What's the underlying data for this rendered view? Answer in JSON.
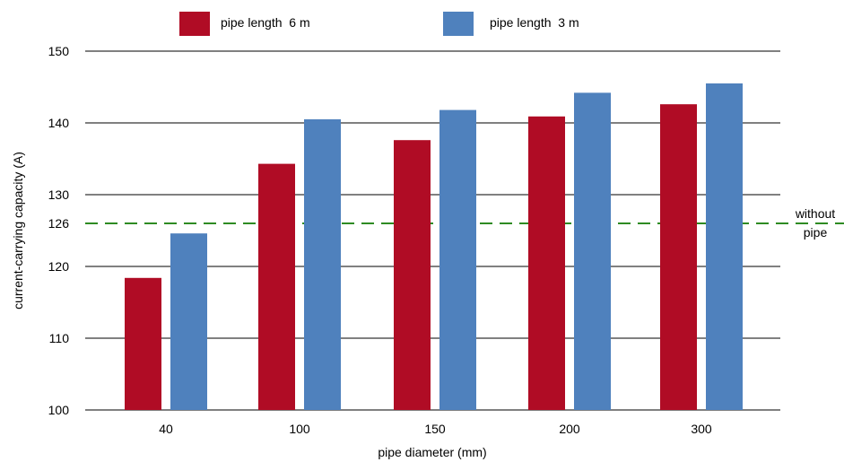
{
  "chart_data": {
    "type": "bar",
    "title": "",
    "xlabel": "pipe diameter (mm)",
    "ylabel": "current-carrying capacity (A)",
    "categories": [
      "40",
      "100",
      "150",
      "200",
      "300"
    ],
    "series": [
      {
        "name": "pipe length  6 m",
        "color": "#b00c25",
        "values": [
          118.4,
          134.3,
          137.6,
          140.9,
          142.6
        ]
      },
      {
        "name": "pipe length  3 m",
        "color": "#4f81bd",
        "values": [
          124.6,
          140.5,
          141.8,
          144.2,
          145.5
        ]
      }
    ],
    "ylim": [
      100,
      150
    ],
    "yticks": [
      100,
      110,
      120,
      130,
      140,
      150
    ],
    "grid": true,
    "legend": "top",
    "reference_line": {
      "value": 126,
      "value_label": "126",
      "label_lines": [
        "without",
        "pipe"
      ],
      "color": "#2e8b22",
      "style": "dashed"
    }
  }
}
